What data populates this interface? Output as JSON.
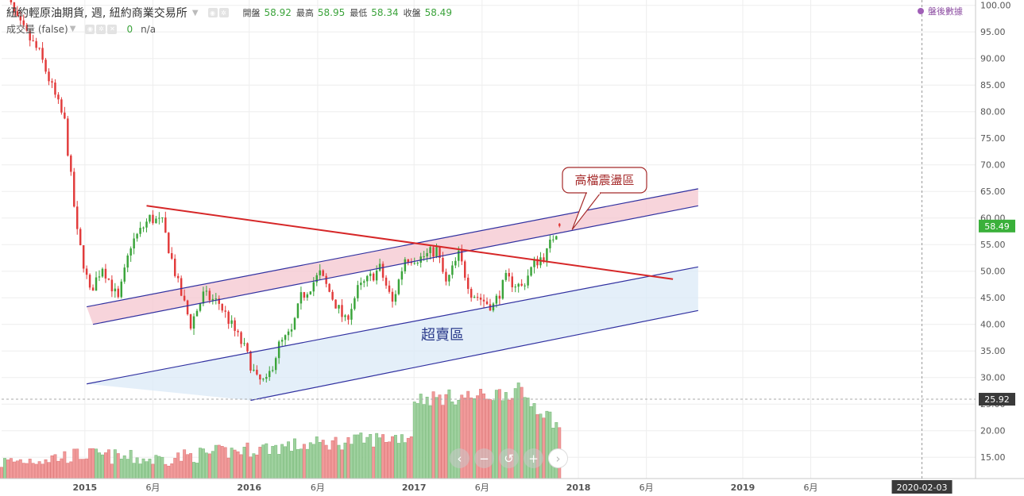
{
  "legend": {
    "title": "紐約輕原油期貨, 週, 紐約商業交易所",
    "ohlc": [
      {
        "label": "開盤",
        "value": "58.92"
      },
      {
        "label": "最高",
        "value": "58.95"
      },
      {
        "label": "最低",
        "value": "58.34"
      },
      {
        "label": "收盤",
        "value": "58.49"
      }
    ],
    "volume_label": "成交量 (false)",
    "volume_value": "0",
    "volume_na": "n/a"
  },
  "after_hours_label": "盤後數據",
  "nav_buttons": [
    "‹",
    "−",
    "↺",
    "+",
    "›"
  ],
  "colors": {
    "up": "#3aa43a",
    "down": "#e23b3b",
    "vol_up": "#9fd19f",
    "vol_down": "#f19a9a",
    "red_line": "#d62728",
    "channel_line": "#3030a0",
    "upper_fill": "#f4c6cf",
    "lower_fill": "#dbe9f7",
    "price_badge": "#3ab03a",
    "dark_badge": "#3a3a3a"
  },
  "chart_data": {
    "type": "candlestick",
    "y_axis": {
      "range": [
        11,
        101
      ],
      "ticks": [
        "15.00",
        "20.00",
        "25.00",
        "30.00",
        "35.00",
        "40.00",
        "45.00",
        "50.00",
        "55.00",
        "60.00",
        "65.00",
        "70.00",
        "75.00",
        "80.00",
        "85.00",
        "90.00",
        "95.00",
        "100.00"
      ],
      "last_price": "58.49",
      "marker_price": "25.92"
    },
    "x_axis": {
      "start": "2014-06-30",
      "end": "2020-06-01",
      "ticks": [
        {
          "label": "2015",
          "date": "2015-01-01",
          "bold": true
        },
        {
          "label": "6月",
          "date": "2015-06-01",
          "bold": false
        },
        {
          "label": "2016",
          "date": "2016-01-01",
          "bold": true
        },
        {
          "label": "6月",
          "date": "2016-06-01",
          "bold": false
        },
        {
          "label": "2017",
          "date": "2017-01-01",
          "bold": true
        },
        {
          "label": "6月",
          "date": "2017-06-01",
          "bold": false
        },
        {
          "label": "2018",
          "date": "2018-01-01",
          "bold": true
        },
        {
          "label": "6月",
          "date": "2018-06-01",
          "bold": false
        },
        {
          "label": "2019",
          "date": "2019-01-01",
          "bold": true
        },
        {
          "label": "6月",
          "date": "2019-06-01",
          "bold": false
        }
      ],
      "cursor_label": "2020-02-03",
      "cursor_date": "2020-02-03"
    },
    "price_path": [
      [
        "2014-06-30",
        104.0
      ],
      [
        "2014-08-04",
        97.0
      ],
      [
        "2014-09-22",
        91.0
      ],
      [
        "2014-11-17",
        78.0
      ],
      [
        "2014-12-15",
        57.0
      ],
      [
        "2015-01-12",
        46.0
      ],
      [
        "2015-02-09",
        51.0
      ],
      [
        "2015-03-16",
        44.5
      ],
      [
        "2015-04-13",
        55.0
      ],
      [
        "2015-05-25",
        60.0
      ],
      [
        "2015-06-22",
        59.0
      ],
      [
        "2015-07-27",
        47.5
      ],
      [
        "2015-08-24",
        40.0
      ],
      [
        "2015-09-21",
        45.5
      ],
      [
        "2015-10-26",
        44.0
      ],
      [
        "2015-12-21",
        35.5
      ],
      [
        "2016-01-18",
        29.5
      ],
      [
        "2016-02-08",
        29.0
      ],
      [
        "2016-03-07",
        36.0
      ],
      [
        "2016-04-04",
        38.5
      ],
      [
        "2016-04-25",
        45.0
      ],
      [
        "2016-06-06",
        49.5
      ],
      [
        "2016-07-04",
        45.0
      ],
      [
        "2016-08-01",
        40.5
      ],
      [
        "2016-08-29",
        46.5
      ],
      [
        "2016-10-17",
        50.5
      ],
      [
        "2016-11-14",
        44.0
      ],
      [
        "2016-12-12",
        52.5
      ],
      [
        "2017-01-16",
        52.5
      ],
      [
        "2017-02-20",
        54.0
      ],
      [
        "2017-03-13",
        47.5
      ],
      [
        "2017-04-10",
        53.0
      ],
      [
        "2017-05-08",
        46.0
      ],
      [
        "2017-06-12",
        44.0
      ],
      [
        "2017-06-26",
        43.5
      ],
      [
        "2017-07-24",
        48.5
      ],
      [
        "2017-08-28",
        47.0
      ],
      [
        "2017-09-25",
        51.5
      ],
      [
        "2017-10-23",
        53.5
      ],
      [
        "2017-11-06",
        56.5
      ],
      [
        "2017-11-20",
        58.49
      ]
    ],
    "volume_path": [
      [
        "2014-06-30",
        14
      ],
      [
        "2015-01-05",
        15.5
      ],
      [
        "2015-06-01",
        14.5
      ],
      [
        "2016-01-04",
        16.5
      ],
      [
        "2016-06-06",
        17.5
      ],
      [
        "2016-12-26",
        19.0
      ],
      [
        "2017-01-02",
        26
      ],
      [
        "2017-06-05",
        26.5
      ],
      [
        "2017-08-21",
        27.5
      ],
      [
        "2017-11-20",
        21
      ]
    ],
    "volume_path_unit": "price axis",
    "trendlines": [
      {
        "type": "line",
        "color": "red",
        "from": [
          "2015-05-18",
          62.3
        ],
        "to": [
          "2018-07-30",
          48.5
        ]
      }
    ],
    "channels": [
      {
        "fill": "upper",
        "text": "高檔震盪區",
        "line_a": [
          [
            "2015-01-05",
            43.3
          ],
          [
            "2018-09-24",
            65.5
          ]
        ],
        "line_b": [
          [
            "2015-01-19",
            40.0
          ],
          [
            "2018-09-24",
            62.3
          ]
        ]
      },
      {
        "fill": "lower",
        "text": "超賣區",
        "line_a": [
          [
            "2015-01-05",
            28.8
          ],
          [
            "2018-09-24",
            50.8
          ]
        ],
        "line_b": [
          [
            "2016-01-04",
            25.7
          ],
          [
            "2018-09-24",
            42.6
          ]
        ]
      }
    ]
  }
}
